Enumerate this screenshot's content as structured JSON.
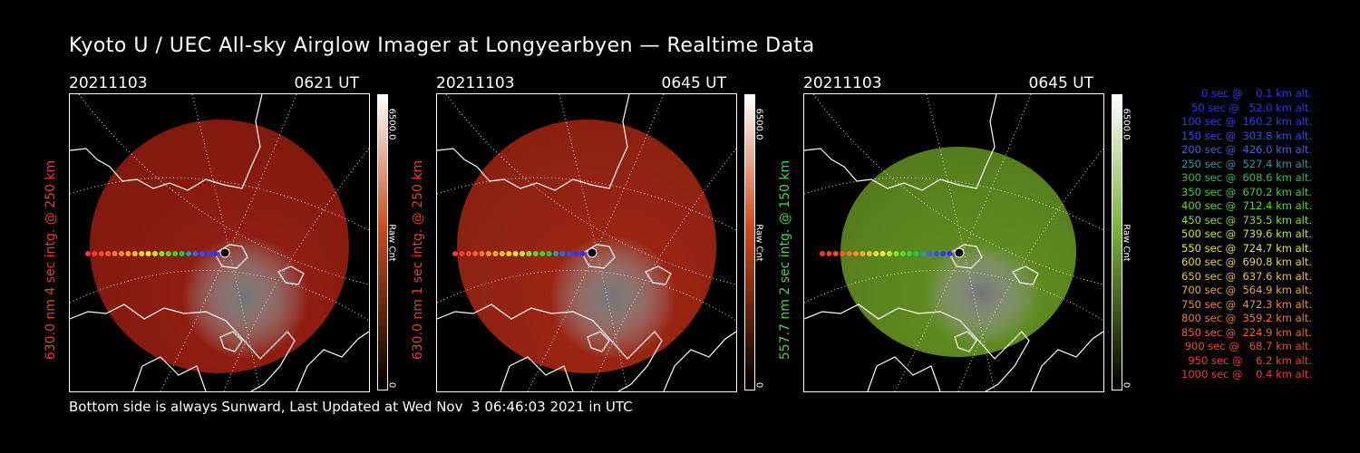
{
  "title": "Kyoto U / UEC All-sky Airglow Imager at Longyearbyen — Realtime Data",
  "footer": "Bottom side is always Sunward, Last Updated at Wed Nov  3 06:46:03 2021 in UTC",
  "panels": [
    {
      "date": "20211103",
      "time": "0621 UT",
      "ylabel": "630.0 nm 4 sec intg. @ 250 km",
      "ylabel_color": "#e0402a",
      "cbar_max": "6500.0",
      "cbar_min": "0",
      "cbar_unit": "Raw Cnt",
      "image_color": "#8f1c10",
      "cbar_color": "#cc4a1a"
    },
    {
      "date": "20211103",
      "time": "0645 UT",
      "ylabel": "630.0 nm 1 sec intg. @ 250 km",
      "ylabel_color": "#e0402a",
      "cbar_max": "6500.0",
      "cbar_min": "0",
      "cbar_unit": "Raw Cnt",
      "image_color": "#9a2412",
      "cbar_color": "#cc4a1a"
    },
    {
      "date": "20211103",
      "time": "0645 UT",
      "ylabel": "557.7 nm 2 sec intg. @ 150 km",
      "ylabel_color": "#46d44a",
      "cbar_max": "6500.0",
      "cbar_min": "0",
      "cbar_unit": "Raw Cnt",
      "image_color": "#5e8a20",
      "cbar_color": "#7ab43a"
    }
  ],
  "legend": [
    {
      "text": "0 sec @    0.1 km alt.",
      "color": "#3a2cff"
    },
    {
      "text": "50 sec @   52.0 km alt.",
      "color": "#3a2cff"
    },
    {
      "text": "100 sec @  160.2 km alt.",
      "color": "#2c3cff"
    },
    {
      "text": "150 sec @  303.8 km alt.",
      "color": "#2c4cff"
    },
    {
      "text": "200 sec @  426.0 km alt.",
      "color": "#3068e0"
    },
    {
      "text": "250 sec @  527.4 km alt.",
      "color": "#2a9aa8"
    },
    {
      "text": "300 sec @  608.6 km alt.",
      "color": "#2ac04a"
    },
    {
      "text": "350 sec @  670.2 km alt.",
      "color": "#3ad030"
    },
    {
      "text": "400 sec @  712.4 km alt.",
      "color": "#5ad828"
    },
    {
      "text": "450 sec @  735.5 km alt.",
      "color": "#8ae030"
    },
    {
      "text": "500 sec @  739.6 km alt.",
      "color": "#c0e830"
    },
    {
      "text": "550 sec @  724.7 km alt.",
      "color": "#e8e830"
    },
    {
      "text": "600 sec @  690.8 km alt.",
      "color": "#f0d830"
    },
    {
      "text": "650 sec @  637.6 km alt.",
      "color": "#f0c030"
    },
    {
      "text": "700 sec @  564.9 km alt.",
      "color": "#f0a830"
    },
    {
      "text": "750 sec @  472.3 km alt.",
      "color": "#f09030"
    },
    {
      "text": "800 sec @  359.2 km alt.",
      "color": "#f07830"
    },
    {
      "text": "850 sec @  224.9 km alt.",
      "color": "#f06030"
    },
    {
      "text": "900 sec @   68.7 km alt.",
      "color": "#f04a30"
    },
    {
      "text": "950 sec @    6.2 km alt.",
      "color": "#f04030"
    },
    {
      "text": "1000 sec @    0.4 km alt.",
      "color": "#f03a30"
    }
  ]
}
